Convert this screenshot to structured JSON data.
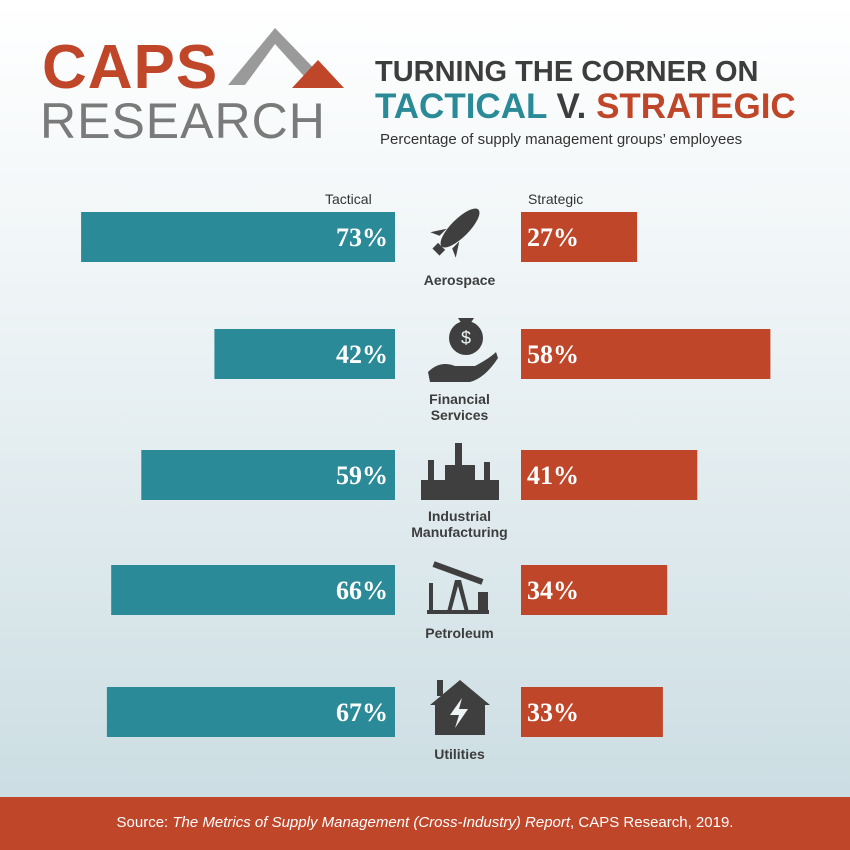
{
  "logo": {
    "top": "CAPS",
    "bottom": "RESEARCH"
  },
  "chart_data": {
    "type": "butterfly-bar",
    "title_parts": [
      "TURNING THE CORNER ON",
      "TACTICAL",
      "V.",
      "STRATEGIC"
    ],
    "subtitle": "Percentage of supply management groups’ employees",
    "categories": [
      "Aerospace",
      "Financial Services",
      "Industrial Manufacturing",
      "Petroleum",
      "Utilities"
    ],
    "series": [
      {
        "name": "Tactical",
        "color": "#2b8a97",
        "values": [
          73,
          42,
          59,
          66,
          67
        ],
        "value_labels": [
          "73%",
          "42%",
          "59%",
          "66%",
          "67%"
        ]
      },
      {
        "name": "Strategic",
        "color": "#c0462a",
        "values": [
          27,
          58,
          41,
          34,
          33
        ],
        "value_labels": [
          "27%",
          "58%",
          "41%",
          "34%",
          "33%"
        ]
      }
    ]
  },
  "source": [
    "Source: ",
    "The Metrics of Supply Management (Cross-Industry) Report",
    ", CAPS Research, 2019."
  ]
}
